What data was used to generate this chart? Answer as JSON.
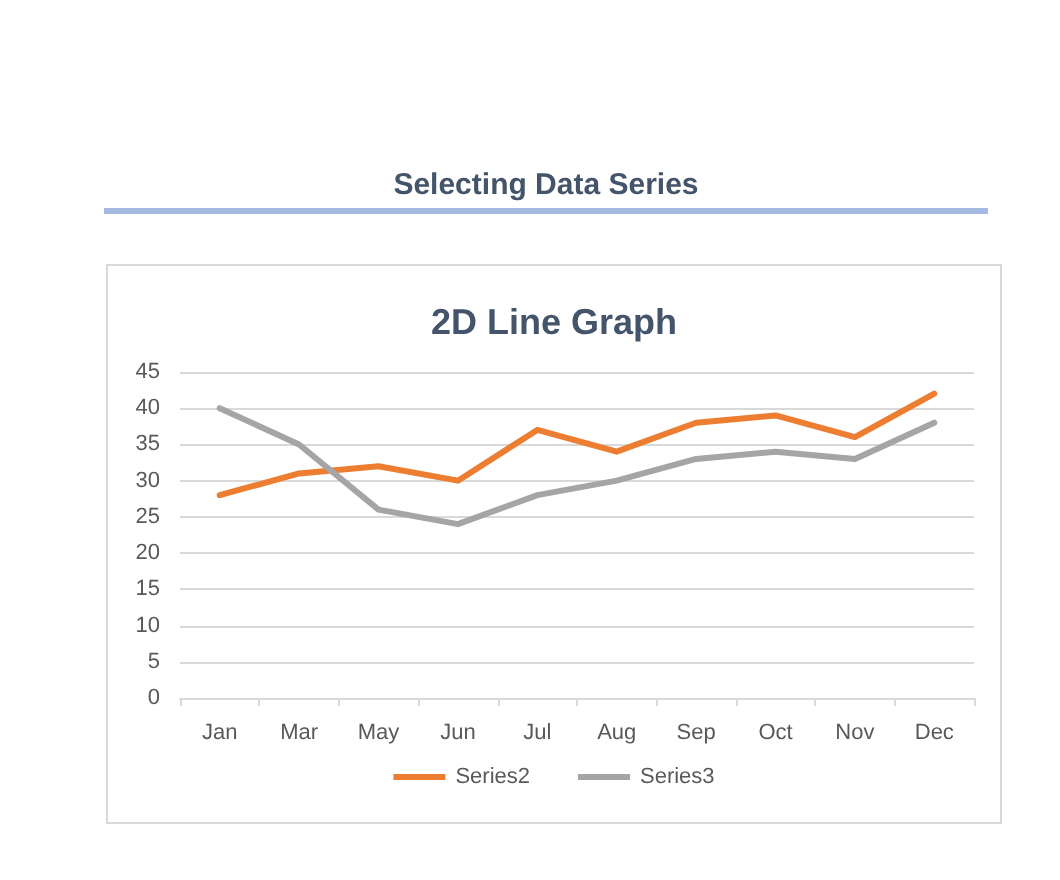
{
  "chart_data": {
    "type": "line",
    "title": "2D Line Graph",
    "annotations": [
      "Selecting Data Series"
    ],
    "categories": [
      "Jan",
      "Mar",
      "May",
      "Jun",
      "Jul",
      "Aug",
      "Sep",
      "Oct",
      "Nov",
      "Dec"
    ],
    "series": [
      {
        "name": "Series2",
        "color": "#ed7d31",
        "values": [
          28,
          31,
          32,
          30,
          37,
          34,
          38,
          39,
          36,
          42
        ]
      },
      {
        "name": "Series3",
        "color": "#a5a5a5",
        "values": [
          40,
          35,
          26,
          24,
          28,
          30,
          33,
          34,
          33,
          38
        ]
      }
    ],
    "ylim": [
      0,
      45
    ],
    "yticks": [
      0,
      5,
      10,
      15,
      20,
      25,
      30,
      35,
      40,
      45
    ],
    "grid": "y",
    "legend": "bottom",
    "marker": "none",
    "line_style": "solid"
  }
}
